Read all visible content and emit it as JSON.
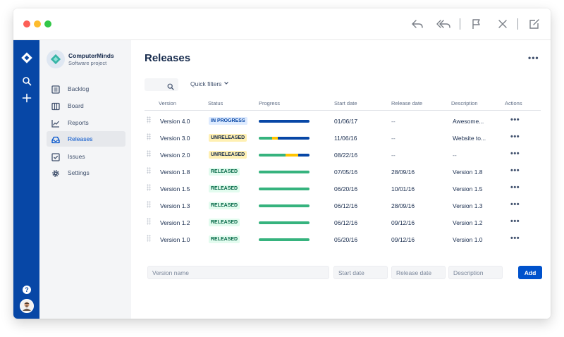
{
  "window": {
    "controls": [
      "close",
      "minimize",
      "zoom"
    ],
    "toolbar_icons": [
      "reply-icon",
      "reply-all-icon",
      "flag-icon",
      "close-icon",
      "compose-icon"
    ]
  },
  "colors": {
    "global_nav": "#0747a6",
    "primary": "#0052cc",
    "progress_done": "#36b37e",
    "progress_in_progress": "#ffc400",
    "progress_todo": "#0747a6"
  },
  "global_nav": {
    "icons": [
      "jira-logo-icon",
      "search-icon",
      "create-icon",
      "help-icon",
      "user-avatar"
    ],
    "help_glyph": "?"
  },
  "sidebar": {
    "project_name": "ComputerMinds",
    "project_type": "Software project",
    "items": [
      {
        "label": "Backlog",
        "icon": "backlog-icon"
      },
      {
        "label": "Board",
        "icon": "board-icon"
      },
      {
        "label": "Reports",
        "icon": "reports-icon"
      },
      {
        "label": "Releases",
        "icon": "releases-icon",
        "active": true
      },
      {
        "label": "Issues",
        "icon": "issues-icon"
      },
      {
        "label": "Settings",
        "icon": "settings-icon"
      }
    ]
  },
  "main": {
    "title": "Releases",
    "quick_filters": "Quick filters",
    "columns": {
      "version": "Version",
      "status": "Status",
      "progress": "Progress",
      "start_date": "Start date",
      "release_date": "Release date",
      "description": "Description",
      "actions": "Actions"
    },
    "rows": [
      {
        "version": "Version 4.0",
        "status": "IN PROGRESS",
        "status_type": "inprogress",
        "progress": {
          "done": 0,
          "in_progress": 0,
          "todo": 1
        },
        "start_date": "01/06/17",
        "release_date": "--",
        "description": "Awesome...",
        "actions": "•••"
      },
      {
        "version": "Version 3.0",
        "status": "UNRELEASED",
        "status_type": "unreleased",
        "progress": {
          "done": 0.27,
          "in_progress": 0.11,
          "todo": 0.62
        },
        "start_date": "11/06/16",
        "release_date": "--",
        "description": "Website to...",
        "actions": "•••"
      },
      {
        "version": "Version 2.0",
        "status": "UNRELEASED",
        "status_type": "unreleased",
        "progress": {
          "done": 0.53,
          "in_progress": 0.25,
          "todo": 0.22
        },
        "start_date": "08/22/16",
        "release_date": "--",
        "description": "--",
        "actions": "•••"
      },
      {
        "version": "Version 1.8",
        "status": "RELEASED",
        "status_type": "released",
        "progress": {
          "done": 1,
          "in_progress": 0,
          "todo": 0
        },
        "start_date": "07/05/16",
        "release_date": "28/09/16",
        "description": "Version 1.8",
        "actions": "•••"
      },
      {
        "version": "Version 1.5",
        "status": "RELEASED",
        "status_type": "released",
        "progress": {
          "done": 1,
          "in_progress": 0,
          "todo": 0
        },
        "start_date": "06/20/16",
        "release_date": "10/01/16",
        "description": "Version 1.5",
        "actions": "•••"
      },
      {
        "version": "Version 1.3",
        "status": "RELEASED",
        "status_type": "released",
        "progress": {
          "done": 1,
          "in_progress": 0,
          "todo": 0
        },
        "start_date": "06/12/16",
        "release_date": "28/09/16",
        "description": "Version 1.3",
        "actions": "•••"
      },
      {
        "version": "Version 1.2",
        "status": "RELEASED",
        "status_type": "released",
        "progress": {
          "done": 1,
          "in_progress": 0,
          "todo": 0
        },
        "start_date": "06/12/16",
        "release_date": "09/12/16",
        "description": "Version 1.2",
        "actions": "•••"
      },
      {
        "version": "Version 1.0",
        "status": "RELEASED",
        "status_type": "released",
        "progress": {
          "done": 1,
          "in_progress": 0,
          "todo": 0
        },
        "start_date": "05/20/16",
        "release_date": "09/12/16",
        "description": "Version 1.0",
        "actions": "•••"
      }
    ],
    "new_version": {
      "name_placeholder": "Version name",
      "start_placeholder": "Start date",
      "release_placeholder": "Release date",
      "description_placeholder": "Description",
      "add_label": "Add"
    },
    "more_actions": "•••"
  }
}
